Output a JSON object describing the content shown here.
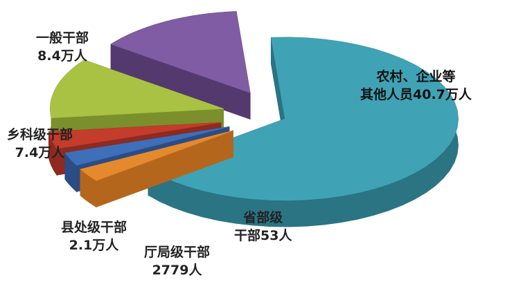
{
  "chart_data": {
    "type": "pie",
    "style": "3d-exploded",
    "unit": "万人",
    "slices": [
      {
        "name": "农村、企业等其他人员",
        "value_label": "40.7万人",
        "value": 40.7,
        "color": "#3fa3b5",
        "side_color": "#2b7484"
      },
      {
        "name": "省部级干部",
        "value_label": "53人",
        "value": 0.0053,
        "color": "#e5892f",
        "side_color": "#b5661d"
      },
      {
        "name": "厅局级干部",
        "value_label": "2779人",
        "value": 0.2779,
        "color": "#3e6fb8",
        "side_color": "#2a4d85"
      },
      {
        "name": "县处级干部",
        "value_label": "2.1万人",
        "value": 2.1,
        "color": "#c43c2c",
        "side_color": "#8e2a1f"
      },
      {
        "name": "乡科级干部",
        "value_label": "7.4万人",
        "value": 7.4,
        "color": "#a9c243",
        "side_color": "#7b8f2c"
      },
      {
        "name": "一般干部",
        "value_label": "8.4万人",
        "value": 8.4,
        "color": "#7f5ca3",
        "side_color": "#54396f"
      }
    ],
    "labels": {
      "other": [
        "农村、企业等",
        "其他人员40.7万人"
      ],
      "general": [
        "一般干部",
        "8.4万人"
      ],
      "township": [
        "乡科级干部",
        "7.4万人"
      ],
      "county": [
        "县处级干部",
        "2.1万人"
      ],
      "bureau": [
        "厅局级干部",
        "2779人"
      ],
      "ministerial": [
        "省部级",
        "干部53人"
      ]
    }
  }
}
